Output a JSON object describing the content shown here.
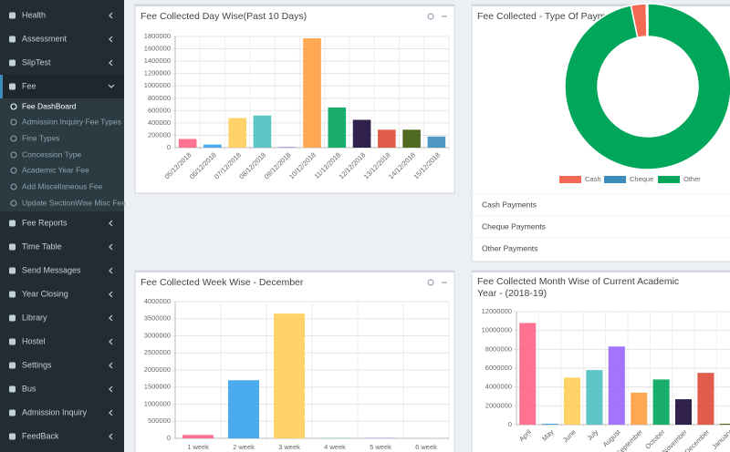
{
  "sidebar": {
    "items": [
      "Health",
      "Assessment",
      "SlipTest",
      "Fee",
      "Fee Reports",
      "Time Table",
      "Send Messages",
      "Year Closing",
      "Library",
      "Hostel",
      "Settings",
      "Bus",
      "Admission Inquiry",
      "FeedBack"
    ],
    "fee_subitems": [
      "Fee DashBoard",
      "Admission Inquiry Fee Types",
      "Fine Types",
      "Concession Type",
      "Academic Year Fee",
      "Add Miscellaneous Fee",
      "Update SectionWise Misc Fee"
    ]
  },
  "payment_links": [
    "Cash Payments",
    "Cheque Payments",
    "Other Payments"
  ],
  "chart_data": [
    {
      "type": "bar",
      "title": "Fee Collected Day Wise(Past 10 Days)",
      "categories": [
        "05/12/2018",
        "06/12/2018",
        "07/12/2018",
        "08/12/2018",
        "09/12/2018",
        "10/12/2018",
        "11/12/2018",
        "12/12/2018",
        "13/12/2018",
        "14/12/2018",
        "15/12/2018"
      ],
      "values": [
        140000,
        50000,
        480000,
        520000,
        10000,
        1770000,
        650000,
        450000,
        290000,
        290000,
        180000
      ],
      "colors": [
        "#ff6384",
        "#36a2eb",
        "#ffce56",
        "#4bc0c0",
        "#9966ff",
        "#ff9f40",
        "#00a65a",
        "#1a0a3a",
        "#dd4b39",
        "#3d5a0a",
        "#3c8dbc"
      ],
      "ylim": [
        0,
        1800000
      ],
      "yticks": [
        0,
        200000,
        400000,
        600000,
        800000,
        1000000,
        1200000,
        1400000,
        1600000,
        1800000
      ],
      "grid": true
    },
    {
      "type": "doughnut",
      "title": "Fee Collected - Type Of Payment",
      "categories": [
        "Cash",
        "Cheque",
        "Other"
      ],
      "values": [
        3,
        0.3,
        96.7
      ],
      "colors": [
        "#f56954",
        "#3c8dbc",
        "#00a65a"
      ]
    },
    {
      "type": "bar",
      "title": "Fee Collected Week Wise - December",
      "categories": [
        "1 week",
        "2 week",
        "3 week",
        "4 week",
        "5 week",
        "6 week"
      ],
      "values": [
        100000,
        1700000,
        3650000,
        10000,
        10000,
        0
      ],
      "colors": [
        "#ff6384",
        "#36a2eb",
        "#ffce56",
        "#4bc0c0",
        "#9966ff",
        "#ff9f40"
      ],
      "ylim": [
        0,
        4000000
      ],
      "yticks": [
        0,
        500000,
        1000000,
        1500000,
        2000000,
        2500000,
        3000000,
        3500000,
        4000000
      ],
      "grid": true
    },
    {
      "type": "bar",
      "title": "Fee Collected Month Wise of Current Academic Year - (2018-19)",
      "categories": [
        "April",
        "May",
        "June",
        "July",
        "August",
        "September",
        "October",
        "November",
        "December",
        "January"
      ],
      "values": [
        10800000,
        100000,
        5000000,
        5800000,
        8300000,
        3400000,
        4800000,
        2700000,
        5500000,
        100000
      ],
      "colors": [
        "#ff6384",
        "#36a2eb",
        "#ffce56",
        "#4bc0c0",
        "#9966ff",
        "#ff9f40",
        "#00a65a",
        "#1a0a3a",
        "#dd4b39",
        "#3d5a0a"
      ],
      "ylim": [
        0,
        12000000
      ],
      "yticks": [
        0,
        2000000,
        4000000,
        6000000,
        8000000,
        10000000,
        12000000
      ],
      "grid": true
    }
  ]
}
